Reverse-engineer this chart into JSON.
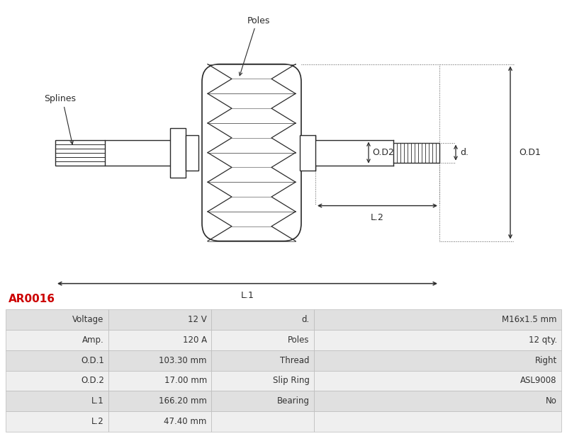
{
  "title_code": "AR0016",
  "title_color": "#cc0000",
  "bg_color": "#ffffff",
  "line_color": "#2a2a2a",
  "table_row_bg1": "#e0e0e0",
  "table_row_bg2": "#efefef",
  "table_data": [
    [
      "Voltage",
      "12 V",
      "d.",
      "M16x1.5 mm"
    ],
    [
      "Amp.",
      "120 A",
      "Poles",
      "12 qty."
    ],
    [
      "O.D.1",
      "103.30 mm",
      "Thread",
      "Right"
    ],
    [
      "O.D.2",
      "17.00 mm",
      "Slip Ring",
      "ASL9008"
    ],
    [
      "L.1",
      "166.20 mm",
      "Bearing",
      "No"
    ],
    [
      "L.2",
      "47.40 mm",
      "",
      ""
    ]
  ],
  "labels": {
    "poles": "Poles",
    "splines": "Splines",
    "od1": "O.D1",
    "od2": "O.D2",
    "d": "d.",
    "l1": "L.1",
    "l2": "L.2"
  }
}
